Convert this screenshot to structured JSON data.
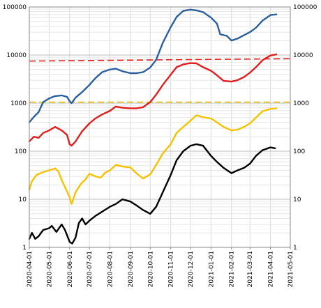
{
  "chart_data": {
    "type": "line",
    "scale": "log",
    "ylim": [
      1,
      100000
    ],
    "xlim": [
      "2020-04-01",
      "2021-05-01"
    ],
    "yticks": [
      "1",
      "10",
      "100",
      "1000",
      "10000",
      "100000"
    ],
    "xticks": [
      "2020-04-01",
      "2020-05-01",
      "2020-06-01",
      "2020-07-01",
      "2020-08-01",
      "2020-09-01",
      "2020-10-01",
      "2020-11-01",
      "2020-12-01",
      "2021-01-01",
      "2021-02-01",
      "2021-03-01",
      "2021-04-01",
      "2021-05-01"
    ],
    "grid": true,
    "series": [
      {
        "color": "#2c5f9e",
        "points": [
          [
            "2020-04-01",
            400
          ],
          [
            "2020-04-08",
            520
          ],
          [
            "2020-04-15",
            650
          ],
          [
            "2020-04-22",
            1050
          ],
          [
            "2020-05-01",
            1250
          ],
          [
            "2020-05-10",
            1400
          ],
          [
            "2020-05-20",
            1450
          ],
          [
            "2020-05-28",
            1350
          ],
          [
            "2020-06-01",
            1100
          ],
          [
            "2020-06-04",
            1000
          ],
          [
            "2020-06-10",
            1300
          ],
          [
            "2020-06-20",
            1700
          ],
          [
            "2020-07-01",
            2400
          ],
          [
            "2020-07-10",
            3300
          ],
          [
            "2020-07-20",
            4400
          ],
          [
            "2020-08-01",
            5000
          ],
          [
            "2020-08-10",
            5200
          ],
          [
            "2020-08-20",
            4600
          ],
          [
            "2020-09-01",
            4200
          ],
          [
            "2020-09-10",
            4200
          ],
          [
            "2020-09-20",
            4400
          ],
          [
            "2020-10-01",
            5500
          ],
          [
            "2020-10-10",
            8000
          ],
          [
            "2020-10-20",
            18000
          ],
          [
            "2020-11-01",
            38000
          ],
          [
            "2020-11-10",
            62000
          ],
          [
            "2020-11-20",
            83000
          ],
          [
            "2020-12-01",
            88000
          ],
          [
            "2020-12-10",
            85000
          ],
          [
            "2020-12-20",
            78000
          ],
          [
            "2021-01-01",
            60000
          ],
          [
            "2021-01-10",
            45000
          ],
          [
            "2021-01-15",
            27000
          ],
          [
            "2021-01-25",
            25000
          ],
          [
            "2021-02-01",
            20000
          ],
          [
            "2021-02-10",
            22000
          ],
          [
            "2021-02-20",
            26000
          ],
          [
            "2021-03-01",
            30000
          ],
          [
            "2021-03-10",
            37000
          ],
          [
            "2021-03-20",
            52000
          ],
          [
            "2021-04-01",
            68000
          ],
          [
            "2021-04-10",
            70000
          ]
        ]
      },
      {
        "color": "#e01e1e",
        "points": [
          [
            "2020-04-01",
            160
          ],
          [
            "2020-04-08",
            200
          ],
          [
            "2020-04-15",
            190
          ],
          [
            "2020-04-22",
            240
          ],
          [
            "2020-05-01",
            270
          ],
          [
            "2020-05-10",
            320
          ],
          [
            "2020-05-20",
            270
          ],
          [
            "2020-05-28",
            220
          ],
          [
            "2020-06-01",
            140
          ],
          [
            "2020-06-04",
            130
          ],
          [
            "2020-06-10",
            160
          ],
          [
            "2020-06-20",
            260
          ],
          [
            "2020-07-01",
            380
          ],
          [
            "2020-07-10",
            480
          ],
          [
            "2020-07-20",
            580
          ],
          [
            "2020-08-01",
            690
          ],
          [
            "2020-08-10",
            850
          ],
          [
            "2020-08-20",
            800
          ],
          [
            "2020-09-01",
            780
          ],
          [
            "2020-09-10",
            780
          ],
          [
            "2020-09-20",
            820
          ],
          [
            "2020-10-01",
            1050
          ],
          [
            "2020-10-10",
            1500
          ],
          [
            "2020-10-20",
            2400
          ],
          [
            "2020-11-01",
            3900
          ],
          [
            "2020-11-10",
            5600
          ],
          [
            "2020-11-20",
            6400
          ],
          [
            "2020-12-01",
            6800
          ],
          [
            "2020-12-10",
            6700
          ],
          [
            "2020-12-20",
            5600
          ],
          [
            "2021-01-01",
            4700
          ],
          [
            "2021-01-10",
            3800
          ],
          [
            "2021-01-20",
            2900
          ],
          [
            "2021-02-01",
            2800
          ],
          [
            "2021-02-10",
            3000
          ],
          [
            "2021-02-20",
            3500
          ],
          [
            "2021-03-01",
            4300
          ],
          [
            "2021-03-10",
            5600
          ],
          [
            "2021-03-20",
            7800
          ],
          [
            "2021-04-01",
            9800
          ],
          [
            "2021-04-10",
            10300
          ]
        ]
      },
      {
        "color": "#f5c200",
        "points": [
          [
            "2020-04-01",
            16
          ],
          [
            "2020-04-05",
            24
          ],
          [
            "2020-04-12",
            32
          ],
          [
            "2020-04-20",
            36
          ],
          [
            "2020-05-01",
            40
          ],
          [
            "2020-05-10",
            44
          ],
          [
            "2020-05-15",
            38
          ],
          [
            "2020-05-20",
            25
          ],
          [
            "2020-05-25",
            18
          ],
          [
            "2020-06-01",
            11
          ],
          [
            "2020-06-04",
            8
          ],
          [
            "2020-06-10",
            14
          ],
          [
            "2020-06-18",
            21
          ],
          [
            "2020-06-25",
            26
          ],
          [
            "2020-07-01",
            34
          ],
          [
            "2020-07-10",
            30
          ],
          [
            "2020-07-18",
            28
          ],
          [
            "2020-07-25",
            36
          ],
          [
            "2020-08-01",
            40
          ],
          [
            "2020-08-10",
            52
          ],
          [
            "2020-08-20",
            48
          ],
          [
            "2020-09-01",
            46
          ],
          [
            "2020-09-10",
            35
          ],
          [
            "2020-09-20",
            27
          ],
          [
            "2020-10-01",
            33
          ],
          [
            "2020-10-10",
            52
          ],
          [
            "2020-10-20",
            90
          ],
          [
            "2020-11-01",
            140
          ],
          [
            "2020-11-10",
            240
          ],
          [
            "2020-11-20",
            320
          ],
          [
            "2020-12-01",
            430
          ],
          [
            "2020-12-10",
            560
          ],
          [
            "2020-12-20",
            510
          ],
          [
            "2021-01-01",
            480
          ],
          [
            "2021-01-10",
            400
          ],
          [
            "2021-01-20",
            320
          ],
          [
            "2021-02-01",
            270
          ],
          [
            "2021-02-10",
            280
          ],
          [
            "2021-02-20",
            320
          ],
          [
            "2021-03-01",
            380
          ],
          [
            "2021-03-10",
            500
          ],
          [
            "2021-03-20",
            680
          ],
          [
            "2021-04-01",
            760
          ],
          [
            "2021-04-10",
            780
          ]
        ]
      },
      {
        "color": "#000000",
        "points": [
          [
            "2020-04-01",
            1.5
          ],
          [
            "2020-04-05",
            2
          ],
          [
            "2020-04-10",
            1.5
          ],
          [
            "2020-04-15",
            1.7
          ],
          [
            "2020-04-22",
            2.3
          ],
          [
            "2020-05-01",
            2.5
          ],
          [
            "2020-05-05",
            2.8
          ],
          [
            "2020-05-12",
            2.1
          ],
          [
            "2020-05-20",
            3
          ],
          [
            "2020-05-25",
            2.3
          ],
          [
            "2020-06-01",
            1.3
          ],
          [
            "2020-06-05",
            1.2
          ],
          [
            "2020-06-10",
            1.6
          ],
          [
            "2020-06-15",
            3.2
          ],
          [
            "2020-06-20",
            4
          ],
          [
            "2020-06-25",
            3
          ],
          [
            "2020-07-01",
            3.6
          ],
          [
            "2020-07-10",
            4.5
          ],
          [
            "2020-07-20",
            5.5
          ],
          [
            "2020-08-01",
            7
          ],
          [
            "2020-08-10",
            8
          ],
          [
            "2020-08-20",
            10
          ],
          [
            "2020-09-01",
            9
          ],
          [
            "2020-09-10",
            7.5
          ],
          [
            "2020-09-20",
            6
          ],
          [
            "2020-10-01",
            5
          ],
          [
            "2020-10-10",
            7
          ],
          [
            "2020-10-20",
            14
          ],
          [
            "2020-11-01",
            32
          ],
          [
            "2020-11-10",
            65
          ],
          [
            "2020-11-20",
            100
          ],
          [
            "2020-12-01",
            130
          ],
          [
            "2020-12-10",
            140
          ],
          [
            "2020-12-20",
            130
          ],
          [
            "2021-01-01",
            80
          ],
          [
            "2021-01-10",
            60
          ],
          [
            "2021-01-20",
            45
          ],
          [
            "2021-02-01",
            35
          ],
          [
            "2021-02-10",
            40
          ],
          [
            "2021-02-20",
            45
          ],
          [
            "2021-03-01",
            55
          ],
          [
            "2021-03-10",
            80
          ],
          [
            "2021-03-20",
            105
          ],
          [
            "2021-04-01",
            120
          ],
          [
            "2021-04-08",
            115
          ]
        ]
      }
    ],
    "reference_lines": [
      {
        "color": "#e01e1e",
        "from": [
          "2020-04-01",
          7500
        ],
        "to": [
          "2021-05-01",
          8400
        ]
      },
      {
        "color": "#f5c200",
        "from": [
          "2020-04-01",
          1050
        ],
        "to": [
          "2021-05-01",
          1050
        ]
      }
    ]
  }
}
